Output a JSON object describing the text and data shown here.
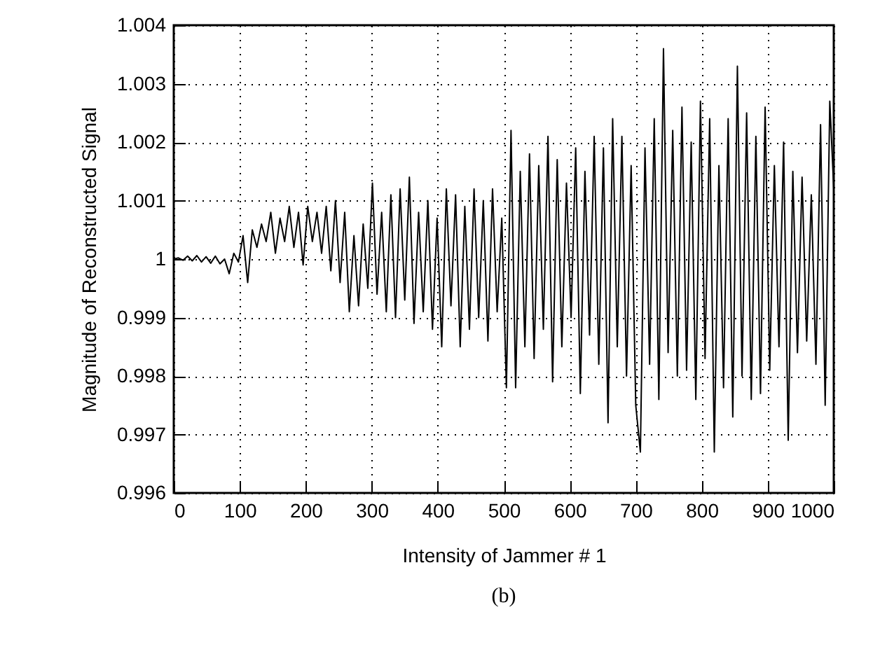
{
  "chart_data": {
    "type": "line",
    "xlabel": "Intensity of Jammer # 1",
    "ylabel": "Magnitude of Reconstructed Signal",
    "annotations": [
      "(b)"
    ],
    "xlim": [
      0,
      1000
    ],
    "xticks": [
      0,
      100,
      200,
      300,
      400,
      500,
      600,
      700,
      800,
      900,
      1000
    ],
    "ylim": [
      0.996,
      1.004
    ],
    "yticks": [
      0.996,
      0.997,
      0.998,
      0.999,
      1,
      1.001,
      1.002,
      1.003,
      1.004
    ],
    "grid": true,
    "marker": "none",
    "line_style": "solid",
    "x": [
      0,
      7,
      14,
      21,
      28,
      35,
      42,
      49,
      56,
      63,
      70,
      77,
      84,
      91,
      98,
      105,
      112,
      119,
      126,
      133,
      140,
      147,
      154,
      161,
      168,
      175,
      182,
      189,
      196,
      203,
      210,
      217,
      224,
      231,
      238,
      245,
      252,
      259,
      266,
      273,
      280,
      287,
      294,
      301,
      308,
      315,
      322,
      329,
      336,
      343,
      350,
      357,
      364,
      371,
      378,
      385,
      392,
      399,
      406,
      413,
      420,
      427,
      434,
      441,
      448,
      455,
      462,
      469,
      476,
      483,
      490,
      497,
      504,
      511,
      518,
      525,
      532,
      539,
      546,
      553,
      560,
      567,
      574,
      581,
      588,
      595,
      602,
      609,
      616,
      623,
      630,
      637,
      644,
      651,
      658,
      665,
      672,
      679,
      686,
      693,
      700,
      707,
      714,
      721,
      728,
      735,
      742,
      749,
      756,
      763,
      770,
      777,
      784,
      791,
      798,
      805,
      812,
      819,
      826,
      833,
      840,
      847,
      854,
      861,
      868,
      875,
      882,
      889,
      896,
      903,
      910,
      917,
      924,
      931,
      938,
      945,
      952,
      959,
      966,
      973,
      980,
      987,
      994,
      1000
    ],
    "series": [
      {
        "color": "#000000",
        "values": [
          1.0,
          1.00002,
          0.99998,
          1.00005,
          0.99997,
          1.00006,
          0.99995,
          1.00004,
          0.99993,
          1.00005,
          0.99992,
          1.0,
          0.99975,
          1.0001,
          0.99995,
          1.0004,
          0.9996,
          1.0005,
          1.0002,
          1.0006,
          1.0003,
          1.0008,
          1.0001,
          1.0007,
          1.0003,
          1.0009,
          1.0002,
          1.0008,
          0.9999,
          1.0009,
          1.0003,
          1.0008,
          1.0001,
          1.0009,
          0.9998,
          1.001,
          0.9996,
          1.0008,
          0.9991,
          1.0004,
          0.9992,
          1.0006,
          0.9995,
          1.0013,
          0.9994,
          1.0008,
          0.9991,
          1.0011,
          0.999,
          1.0012,
          0.9993,
          1.0014,
          0.9989,
          1.0008,
          0.9991,
          1.001,
          0.9988,
          1.0007,
          0.9985,
          1.0012,
          0.9992,
          1.0011,
          0.9985,
          1.0009,
          0.9988,
          1.0012,
          0.999,
          1.001,
          0.9986,
          1.0012,
          0.9991,
          1.0007,
          0.9978,
          1.0022,
          0.9978,
          1.0015,
          0.9985,
          1.0018,
          0.9983,
          1.0016,
          0.9988,
          1.0021,
          0.9979,
          1.0017,
          0.9985,
          1.0013,
          0.999,
          1.0019,
          0.9977,
          1.0015,
          0.9987,
          1.0021,
          0.9982,
          1.0019,
          0.9972,
          1.0024,
          0.9985,
          1.0021,
          0.998,
          1.0016,
          0.9975,
          0.9967,
          1.0019,
          0.9982,
          1.0024,
          0.9976,
          1.0036,
          0.9984,
          1.0022,
          0.998,
          1.0026,
          0.9981,
          1.002,
          0.9976,
          1.0027,
          0.9983,
          1.0024,
          0.9967,
          1.0016,
          0.9978,
          1.0024,
          0.9973,
          1.0033,
          0.998,
          1.0025,
          0.9976,
          1.0021,
          0.9977,
          1.0026,
          0.9981,
          1.0016,
          0.9985,
          1.002,
          0.9969,
          1.0015,
          0.9984,
          1.0014,
          0.9986,
          1.0011,
          0.9982,
          1.0023,
          0.9975,
          1.0027,
          1.0012
        ]
      }
    ]
  }
}
